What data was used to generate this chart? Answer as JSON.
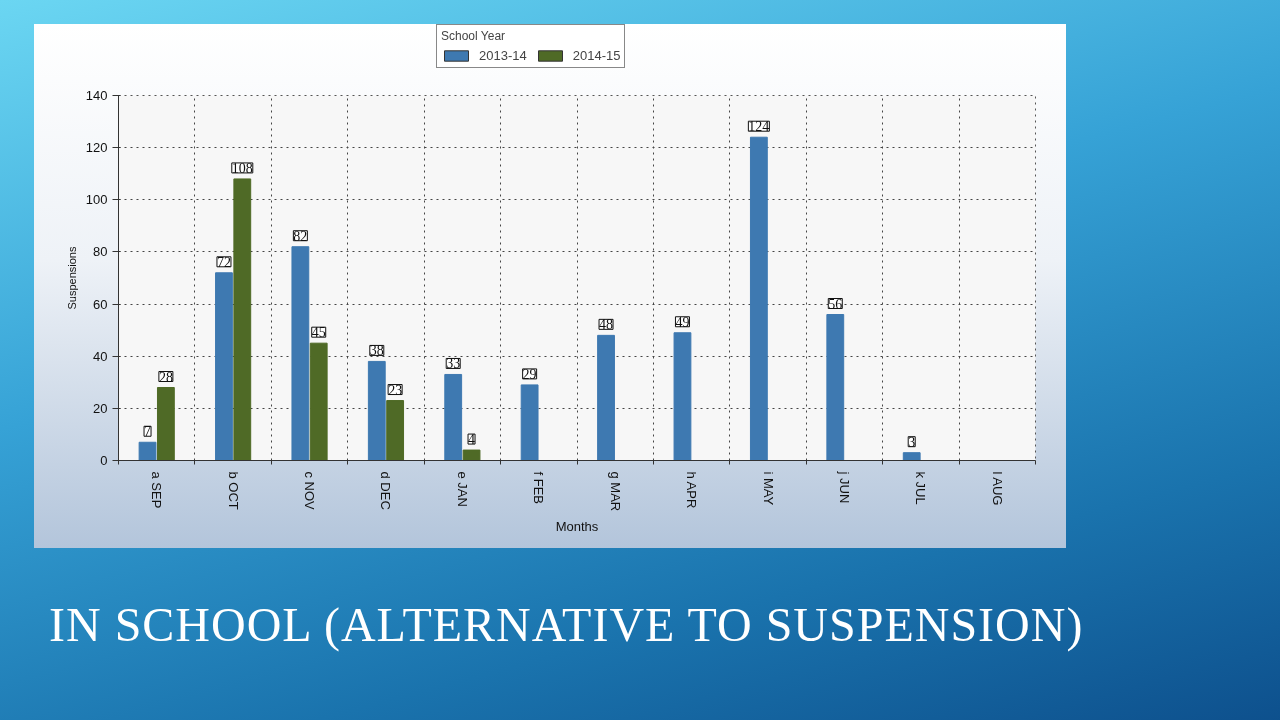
{
  "chart_data": {
    "type": "bar",
    "title": "IN SCHOOL (ALTERNATIVE TO SUSPENSION)",
    "xlabel": "Months",
    "ylabel": "Suspensions",
    "legend_title": "School Year",
    "categories": [
      "a SEP",
      "b OCT",
      "c NOV",
      "d DEC",
      "e JAN",
      "f FEB",
      "g MAR",
      "h APR",
      "i MAY",
      "j JUN",
      "k JUL",
      "l AUG"
    ],
    "series": [
      {
        "name": "2013-14",
        "color": "#3e79b1",
        "values": [
          7,
          72,
          82,
          38,
          33,
          29,
          48,
          49,
          124,
          56,
          3,
          null
        ]
      },
      {
        "name": "2014-15",
        "color": "#4f6a26",
        "values": [
          28,
          108,
          45,
          23,
          4,
          null,
          null,
          null,
          null,
          null,
          null,
          null
        ]
      }
    ],
    "ylim": [
      0,
      140
    ],
    "yticks": [
      0,
      20,
      40,
      60,
      80,
      100,
      120,
      140
    ],
    "grid": true,
    "legend": "top",
    "data_labels": true
  }
}
